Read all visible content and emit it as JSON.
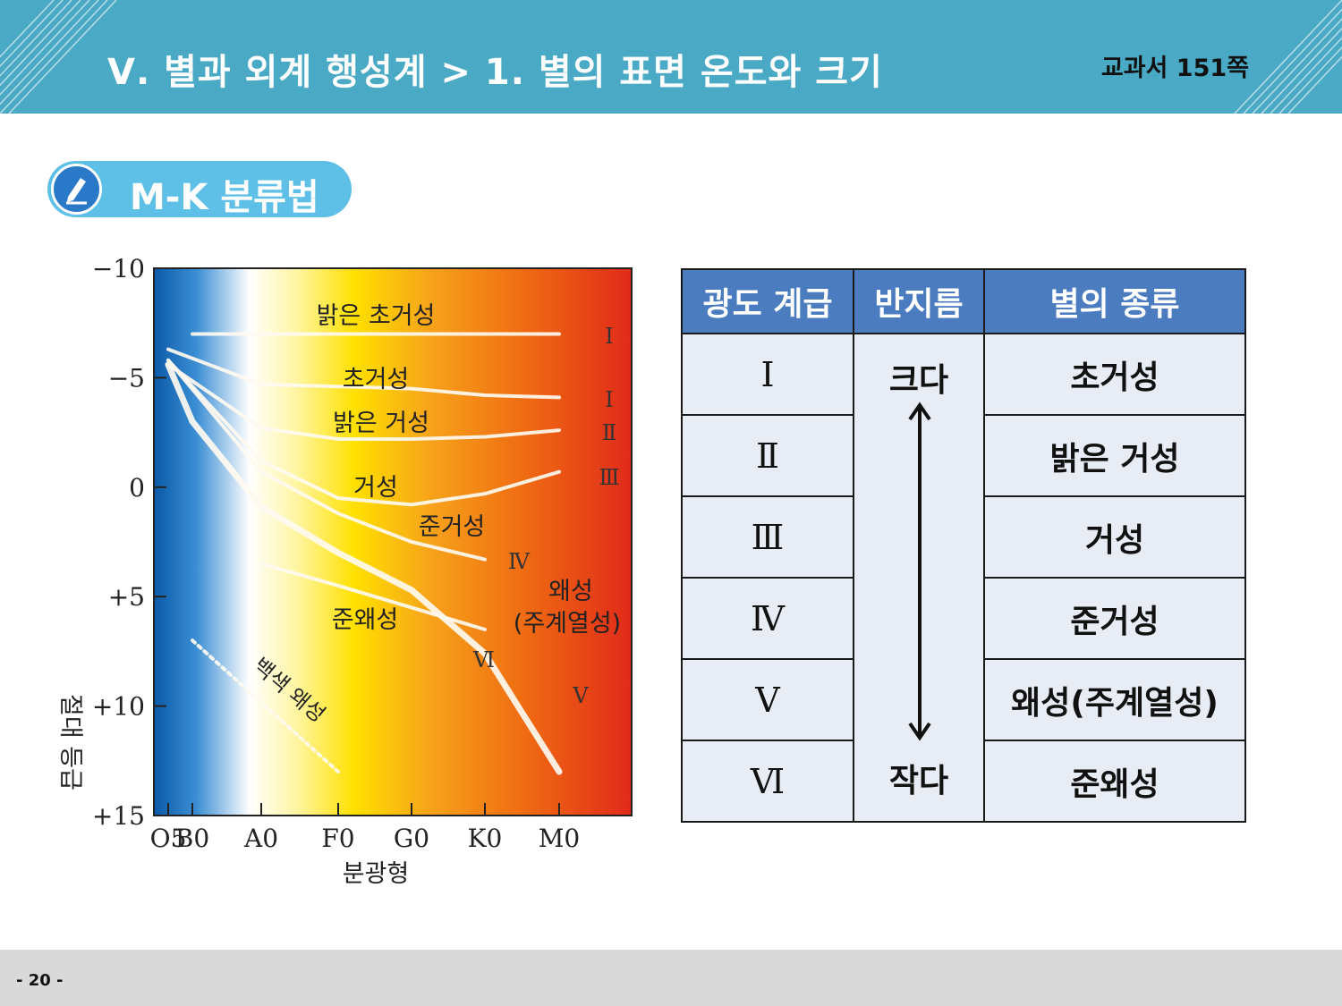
{
  "header": {
    "title": "Ⅴ. 별과 외계 행성계 > 1. 별의 표면 온도와 크기",
    "page_ref": "교과서  151쪽",
    "color": "#4aaac6"
  },
  "section": {
    "title": "M-K 분류법",
    "icon": "pencil-icon"
  },
  "chart_data": {
    "type": "line",
    "xlabel": "분광형",
    "ylabel": "절대 등급",
    "x_ticks": [
      "O5",
      "B0",
      "A0",
      "F0",
      "G0",
      "K0",
      "M0"
    ],
    "y_ticks": [
      "−10",
      "−5",
      "0",
      "+5",
      "+10",
      "+15"
    ],
    "ylim": [
      -10,
      15
    ],
    "y_inverted": true,
    "background": "color gradient blue → white → yellow → orange → red",
    "series": [
      {
        "name": "밝은 초거성",
        "class": "Ⅰ",
        "x": [
          "B0",
          "M0"
        ],
        "y": [
          -7,
          -7
        ]
      },
      {
        "name": "초거성",
        "class": "Ⅰ",
        "x": [
          "O5",
          "A0",
          "F0",
          "G0",
          "K0",
          "M0"
        ],
        "y": [
          -6.3,
          -4.7,
          -4.6,
          -4.5,
          -4.2,
          -4.1
        ]
      },
      {
        "name": "밝은 거성",
        "class": "Ⅱ",
        "x": [
          "O5",
          "A0",
          "F0",
          "G0",
          "K0",
          "M0"
        ],
        "y": [
          -5.6,
          -2.7,
          -2.2,
          -2.2,
          -2.3,
          -2.6
        ]
      },
      {
        "name": "거성",
        "class": "Ⅲ",
        "x": [
          "O5",
          "A0",
          "F0",
          "G0",
          "K0",
          "M0"
        ],
        "y": [
          -5.8,
          -1.2,
          0.5,
          0.8,
          0.3,
          -0.7
        ]
      },
      {
        "name": "준거성",
        "class": "Ⅳ",
        "x": [
          "O5",
          "A0",
          "F0",
          "G0",
          "K0"
        ],
        "y": [
          -5.8,
          -0.7,
          1.2,
          2.5,
          3.3
        ]
      },
      {
        "name": "왜성(주계열성)",
        "class": "Ⅴ",
        "x": [
          "O5",
          "B0",
          "A0",
          "F0",
          "G0",
          "K0",
          "M0"
        ],
        "y": [
          -5.6,
          -3,
          0.9,
          3,
          4.7,
          7.6,
          13
        ]
      },
      {
        "name": "준왜성",
        "class": "Ⅵ",
        "x": [
          "A0",
          "F0",
          "G0",
          "K0"
        ],
        "y": [
          3.5,
          4.5,
          5.5,
          6.5
        ]
      },
      {
        "name": "백색 왜성",
        "class": "",
        "x": [
          "B0",
          "F0"
        ],
        "y": [
          7,
          13
        ]
      }
    ],
    "labels": {
      "bright_supergiant": "밝은 초거성",
      "supergiant": "초거성",
      "bright_giant": "밝은 거성",
      "giant": "거성",
      "subgiant": "준거성",
      "dwarf_1": "왜성",
      "dwarf_2": "(주계열성)",
      "subdwarf": "준왜성",
      "white_dwarf": "백색 왜성"
    },
    "class_marks": {
      "I_top": "Ⅰ",
      "I": "Ⅰ",
      "II": "Ⅱ",
      "III": "Ⅲ",
      "IV": "Ⅳ",
      "V": "Ⅴ",
      "VI": "Ⅵ"
    }
  },
  "table": {
    "headers": [
      "광도 계급",
      "반지름",
      "별의 종류"
    ],
    "classes": [
      "Ⅰ",
      "Ⅱ",
      "Ⅲ",
      "Ⅳ",
      "Ⅴ",
      "Ⅵ"
    ],
    "types": [
      "초거성",
      "밝은 거성",
      "거성",
      "준거성",
      "왜성(주계열성)",
      "준왜성"
    ],
    "radius_large": "크다",
    "radius_small": "작다",
    "header_color": "#4b7cc0",
    "cell_color": "#e8ecf4"
  },
  "footer": {
    "page_number": "- 20 -"
  }
}
